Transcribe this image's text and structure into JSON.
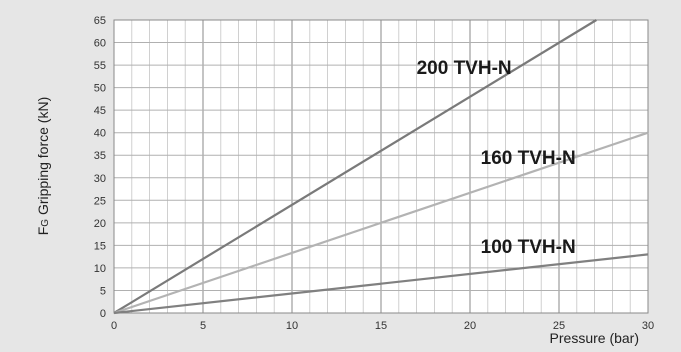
{
  "chart_data": {
    "type": "line",
    "xlabel": "Pressure (bar)",
    "ylabel_prefix": "F",
    "ylabel_subscript": "G",
    "ylabel_rest": " Gripping force (kN)",
    "xlim": [
      0,
      30
    ],
    "ylim": [
      0,
      65
    ],
    "x_major_ticks": [
      "0",
      "5",
      "10",
      "15",
      "20",
      "25",
      "30"
    ],
    "y_ticks": [
      "0",
      "5",
      "10",
      "15",
      "20",
      "25",
      "30",
      "35",
      "40",
      "45",
      "50",
      "55",
      "60",
      "65"
    ],
    "grid": true,
    "series": [
      {
        "name": "200 TVH-N",
        "x": [
          0,
          27.1
        ],
        "y": [
          0,
          65
        ],
        "color": "#7a7a7a",
        "label_at": [
          17,
          53
        ]
      },
      {
        "name": "160 TVH-N",
        "x": [
          0,
          30
        ],
        "y": [
          0,
          40
        ],
        "color": "#b3b3b3",
        "label_at": [
          20.6,
          33
        ]
      },
      {
        "name": "100 TVH-N",
        "x": [
          0,
          30
        ],
        "y": [
          0,
          13
        ],
        "color": "#808080",
        "label_at": [
          20.6,
          13.3
        ]
      }
    ]
  }
}
